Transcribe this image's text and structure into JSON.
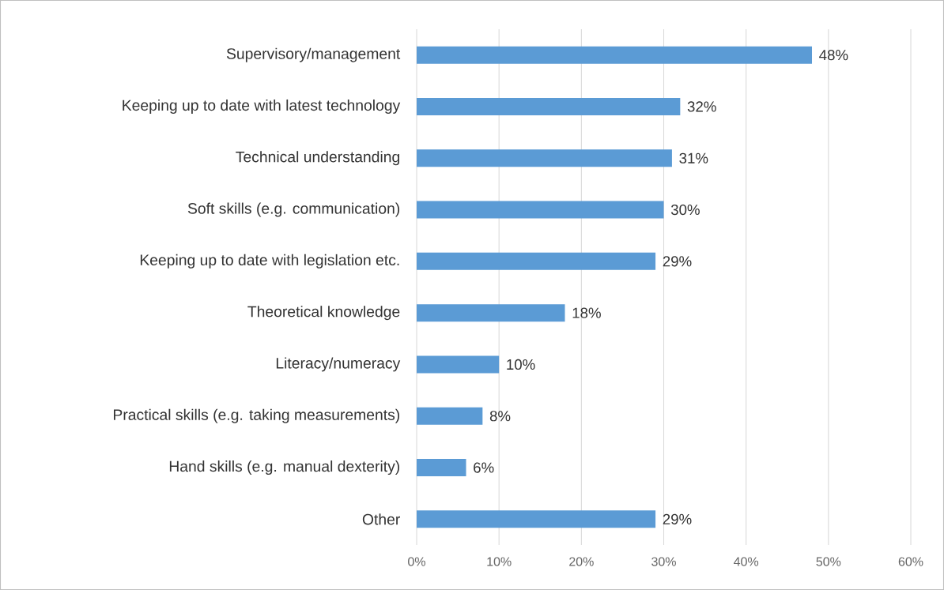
{
  "chart_data": {
    "type": "bar",
    "orientation": "horizontal",
    "categories": [
      "Supervisory/management",
      "Keeping up to date with latest technology",
      "Technical understanding",
      "Soft skills (e.g. communication)",
      "Keeping up to date with legislation etc.",
      "Theoretical knowledge",
      "Literacy/numeracy",
      "Practical skills (e.g. taking measurements)",
      "Hand skills (e.g. manual dexterity)",
      "Other"
    ],
    "values": [
      48,
      32,
      31,
      30,
      29,
      18,
      10,
      8,
      6,
      29
    ],
    "value_labels": [
      "48%",
      "32%",
      "31%",
      "30%",
      "29%",
      "18%",
      "10%",
      "8%",
      "6%",
      "29%"
    ],
    "color": "#5b9bd5",
    "xlim": [
      0,
      60
    ],
    "xticks": [
      {
        "value": 0,
        "label": "0%"
      },
      {
        "value": 10,
        "label": "10%"
      },
      {
        "value": 20,
        "label": "20%"
      },
      {
        "value": 30,
        "label": "30%"
      },
      {
        "value": 40,
        "label": "40%"
      },
      {
        "value": 50,
        "label": "50%"
      },
      {
        "value": 60,
        "label": "60%"
      }
    ],
    "grid": "x"
  }
}
